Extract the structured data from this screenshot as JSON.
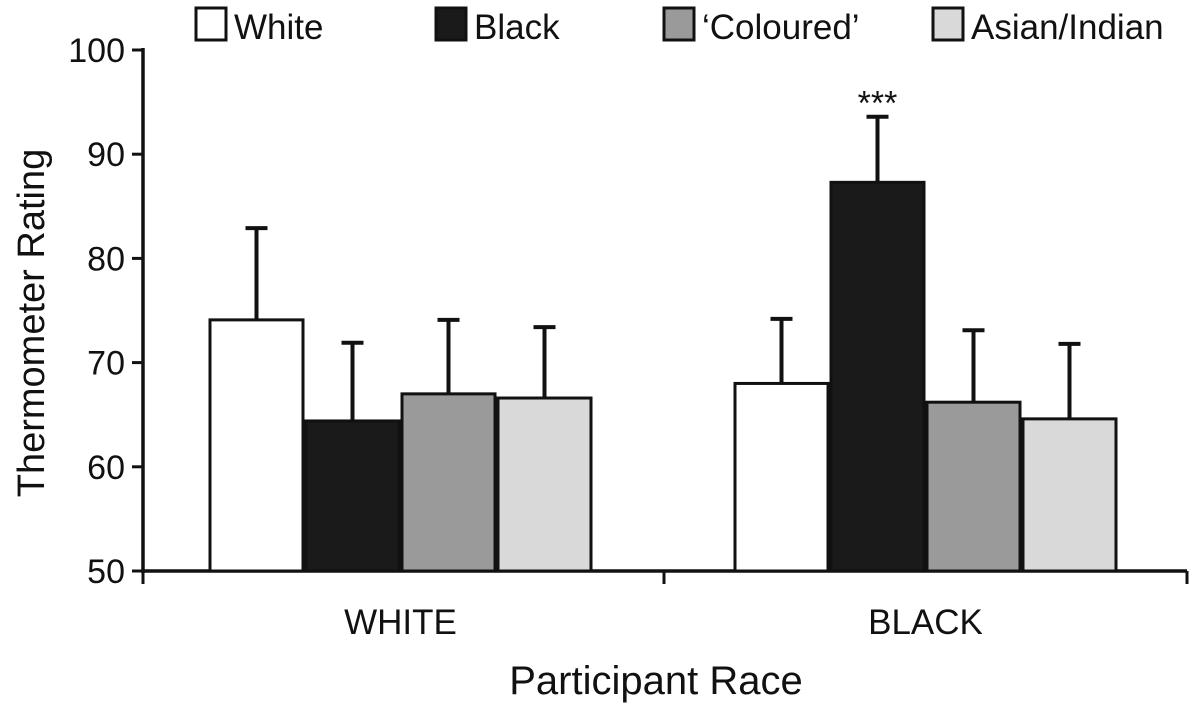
{
  "chart_data": {
    "type": "bar",
    "title": "",
    "xlabel": "Participant Race",
    "ylabel": "Thermometer Rating",
    "ylim": [
      50,
      100
    ],
    "yticks": [
      50,
      60,
      70,
      80,
      90,
      100
    ],
    "categories": [
      "WHITE",
      "BLACK"
    ],
    "series": [
      {
        "name": "White",
        "color": "#ffffff",
        "values": [
          74.1,
          68.0
        ],
        "errors": [
          8.8,
          6.2
        ]
      },
      {
        "name": "Black",
        "color": "#1a1a1a",
        "values": [
          64.4,
          87.3
        ],
        "errors": [
          7.5,
          6.3
        ]
      },
      {
        "name": "‘Coloured’",
        "color": "#9a9a9a",
        "values": [
          67.0,
          66.2
        ],
        "errors": [
          7.1,
          6.9
        ]
      },
      {
        "name": "Asian/Indian",
        "color": "#d9d9d9",
        "values": [
          66.6,
          64.6
        ],
        "errors": [
          6.8,
          7.2
        ]
      }
    ],
    "annotations": [
      {
        "text": "***",
        "category": "BLACK",
        "series": "Black"
      }
    ],
    "legend_position": "top",
    "grid": false
  }
}
